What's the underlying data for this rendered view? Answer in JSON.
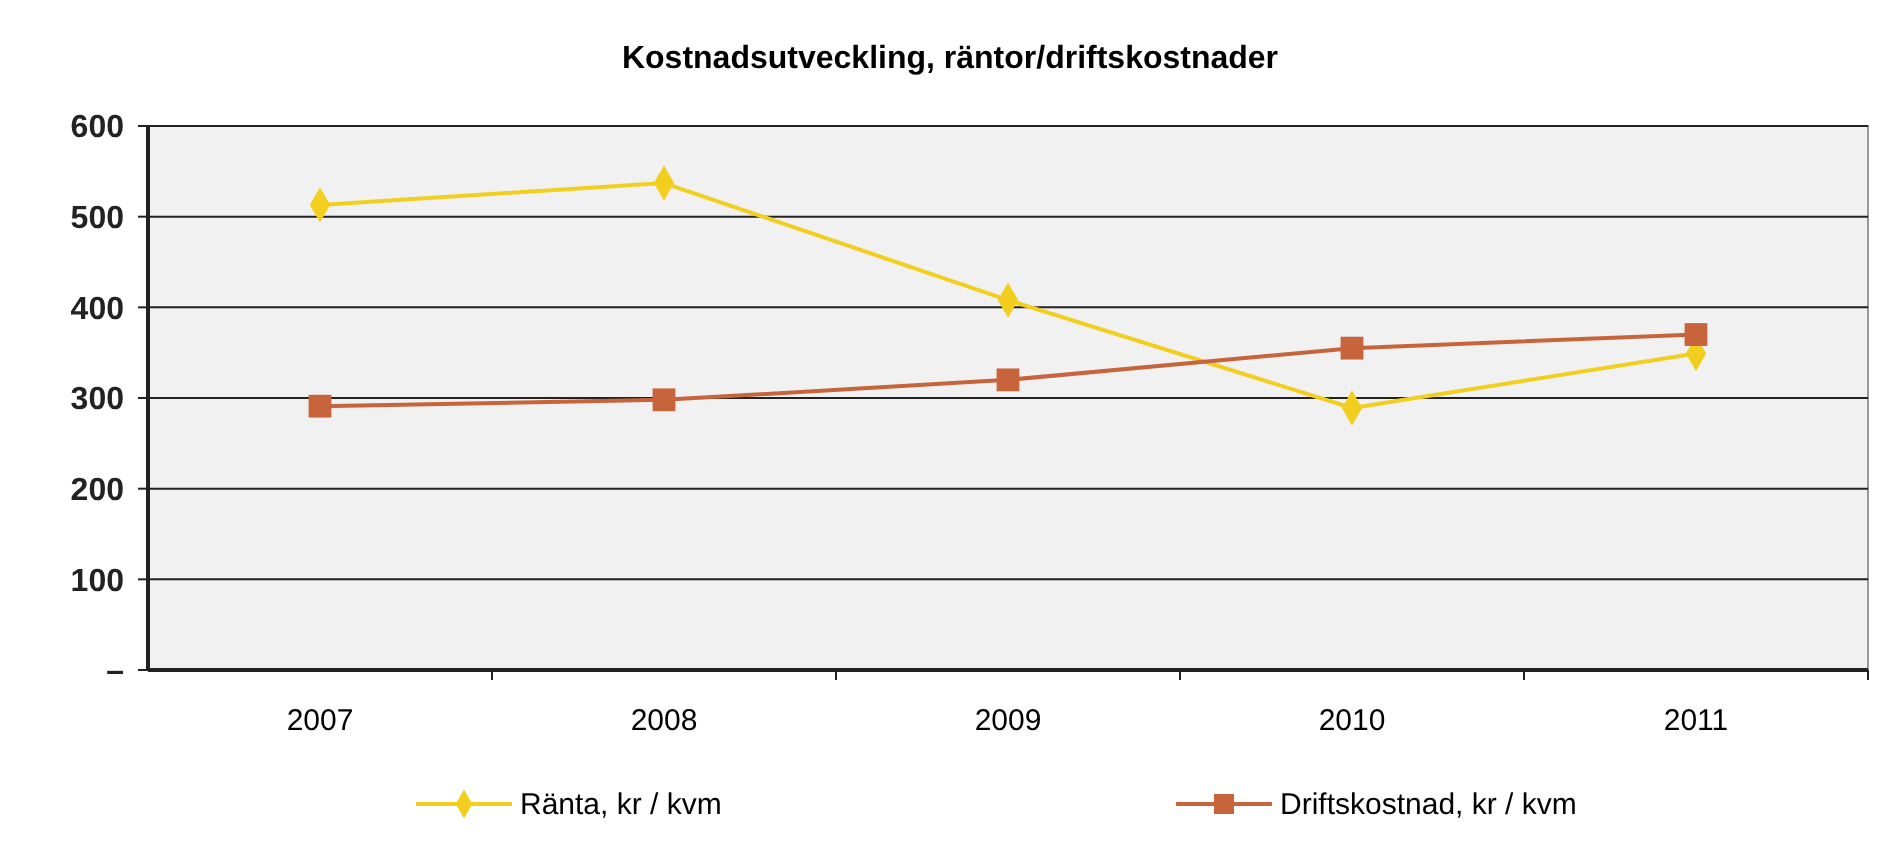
{
  "chart_data": {
    "type": "line",
    "title": "Kostnadsutveckling, räntor/driftskostnader",
    "categories": [
      "2007",
      "2008",
      "2009",
      "2010",
      "2011"
    ],
    "series": [
      {
        "name": "Ränta, kr / kvm",
        "color": "#f2cf1f",
        "marker": "diamond",
        "values": [
          513,
          537,
          408,
          289,
          349
        ]
      },
      {
        "name": "Driftskostnad, kr / kvm",
        "color": "#c8643c",
        "marker": "square",
        "values": [
          291,
          298,
          320,
          355,
          370
        ]
      }
    ],
    "ylim": [
      0,
      600
    ],
    "yticks": [
      {
        "value": 0,
        "label": "–"
      },
      100,
      200,
      300,
      400,
      500,
      600
    ],
    "grid": "y",
    "legend": "bottom"
  }
}
